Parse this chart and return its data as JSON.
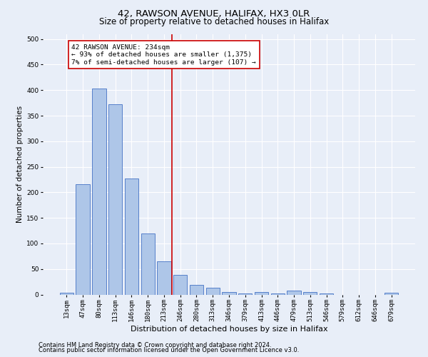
{
  "title1": "42, RAWSON AVENUE, HALIFAX, HX3 0LR",
  "title2": "Size of property relative to detached houses in Halifax",
  "xlabel": "Distribution of detached houses by size in Halifax",
  "ylabel": "Number of detached properties",
  "bar_labels": [
    "13sqm",
    "47sqm",
    "80sqm",
    "113sqm",
    "146sqm",
    "180sqm",
    "213sqm",
    "246sqm",
    "280sqm",
    "313sqm",
    "346sqm",
    "379sqm",
    "413sqm",
    "446sqm",
    "479sqm",
    "513sqm",
    "546sqm",
    "579sqm",
    "612sqm",
    "646sqm",
    "679sqm"
  ],
  "bar_values": [
    4,
    216,
    403,
    373,
    227,
    120,
    65,
    38,
    19,
    13,
    5,
    2,
    5,
    2,
    7,
    5,
    2,
    0,
    0,
    0,
    3
  ],
  "bar_color": "#aec6e8",
  "bar_edge_color": "#4472c4",
  "vline_x_index": 7,
  "vline_color": "#cc0000",
  "annotation_text": "42 RAWSON AVENUE: 234sqm\n← 93% of detached houses are smaller (1,375)\n7% of semi-detached houses are larger (107) →",
  "annotation_box_color": "#ffffff",
  "annotation_box_edge": "#cc0000",
  "ylim": [
    0,
    510
  ],
  "yticks": [
    0,
    50,
    100,
    150,
    200,
    250,
    300,
    350,
    400,
    450,
    500
  ],
  "footnote1": "Contains HM Land Registry data © Crown copyright and database right 2024.",
  "footnote2": "Contains public sector information licensed under the Open Government Licence v3.0.",
  "background_color": "#e8eef8",
  "grid_color": "#ffffff",
  "title1_fontsize": 9.5,
  "title2_fontsize": 8.5,
  "xlabel_fontsize": 8,
  "ylabel_fontsize": 7.5,
  "tick_fontsize": 6.5,
  "ann_fontsize": 6.8,
  "footnote_fontsize": 6.0
}
